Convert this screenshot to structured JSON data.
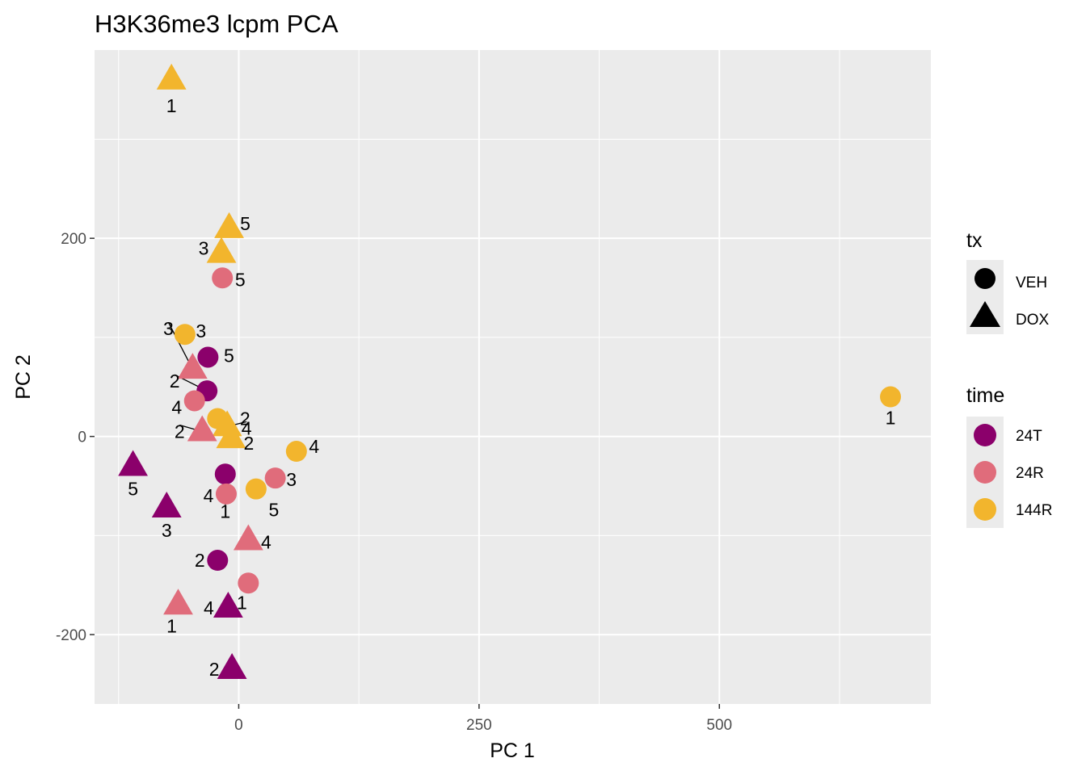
{
  "chart_data": {
    "type": "scatter",
    "title": "H3K36me3 lcpm PCA",
    "xlabel": "PC 1",
    "ylabel": "PC 2",
    "xlim": [
      -150,
      720
    ],
    "ylim": [
      -270,
      390
    ],
    "x_ticks": [
      0,
      250,
      500
    ],
    "x_tick_labels": [
      "0",
      "250",
      "500"
    ],
    "y_ticks": [
      -200,
      0,
      200
    ],
    "y_tick_labels": [
      "-200",
      "0",
      "200"
    ],
    "grid": true,
    "legends": {
      "tx": {
        "title": "tx",
        "items": [
          {
            "label": "VEH",
            "shape": "circle"
          },
          {
            "label": "DOX",
            "shape": "triangle"
          }
        ]
      },
      "time": {
        "title": "time",
        "items": [
          {
            "label": "24T",
            "color": "#8B006B"
          },
          {
            "label": "24R",
            "color": "#E06C7B"
          },
          {
            "label": "144R",
            "color": "#F2B52D"
          }
        ]
      }
    },
    "colors": {
      "24T": "#8B006B",
      "24R": "#E06C7B",
      "144R": "#F2B52D"
    },
    "points": [
      {
        "x": -70,
        "y": 360,
        "tx": "DOX",
        "time": "144R",
        "label": "1"
      },
      {
        "x": -10,
        "y": 210,
        "tx": "DOX",
        "time": "144R",
        "label": "5"
      },
      {
        "x": -18,
        "y": 185,
        "tx": "DOX",
        "time": "144R",
        "label": "3"
      },
      {
        "x": -17,
        "y": 160,
        "tx": "VEH",
        "time": "24R",
        "label": "5"
      },
      {
        "x": -56,
        "y": 103,
        "tx": "VEH",
        "time": "144R",
        "label": "3"
      },
      {
        "x": -32,
        "y": 80,
        "tx": "VEH",
        "time": "24T",
        "label": "5"
      },
      {
        "x": -48,
        "y": 68,
        "tx": "DOX",
        "time": "24R",
        "label": "3"
      },
      {
        "x": -33,
        "y": 46,
        "tx": "VEH",
        "time": "24T",
        "label": "2"
      },
      {
        "x": -46,
        "y": 36,
        "tx": "VEH",
        "time": "24R",
        "label": "4"
      },
      {
        "x": -22,
        "y": 18,
        "tx": "VEH",
        "time": "144R",
        "label": "2"
      },
      {
        "x": -12,
        "y": 10,
        "tx": "DOX",
        "time": "144R",
        "label": "4"
      },
      {
        "x": -38,
        "y": 5,
        "tx": "DOX",
        "time": "24R",
        "label": "2"
      },
      {
        "x": -8,
        "y": -2,
        "tx": "DOX",
        "time": "144R",
        "label": "2"
      },
      {
        "x": 60,
        "y": -15,
        "tx": "VEH",
        "time": "144R",
        "label": "4"
      },
      {
        "x": -110,
        "y": -30,
        "tx": "DOX",
        "time": "24T",
        "label": "5"
      },
      {
        "x": -14,
        "y": -38,
        "tx": "VEH",
        "time": "24T",
        "label": "1"
      },
      {
        "x": 38,
        "y": -42,
        "tx": "VEH",
        "time": "24R",
        "label": "3"
      },
      {
        "x": -13,
        "y": -58,
        "tx": "VEH",
        "time": "24R",
        "label": "4"
      },
      {
        "x": 18,
        "y": -53,
        "tx": "VEH",
        "time": "144R",
        "label": "5"
      },
      {
        "x": -75,
        "y": -72,
        "tx": "DOX",
        "time": "24T",
        "label": "3"
      },
      {
        "x": 10,
        "y": -105,
        "tx": "DOX",
        "time": "24R",
        "label": "4"
      },
      {
        "x": -22,
        "y": -125,
        "tx": "VEH",
        "time": "24T",
        "label": "2"
      },
      {
        "x": 10,
        "y": -148,
        "tx": "VEH",
        "time": "24R",
        "label": "1"
      },
      {
        "x": -63,
        "y": -170,
        "tx": "DOX",
        "time": "24R",
        "label": "1"
      },
      {
        "x": -11,
        "y": -173,
        "tx": "DOX",
        "time": "24T",
        "label": "4"
      },
      {
        "x": -7,
        "y": -235,
        "tx": "DOX",
        "time": "24T",
        "label": "2"
      },
      {
        "x": 678,
        "y": 40,
        "tx": "VEH",
        "time": "144R",
        "label": "1"
      }
    ]
  }
}
